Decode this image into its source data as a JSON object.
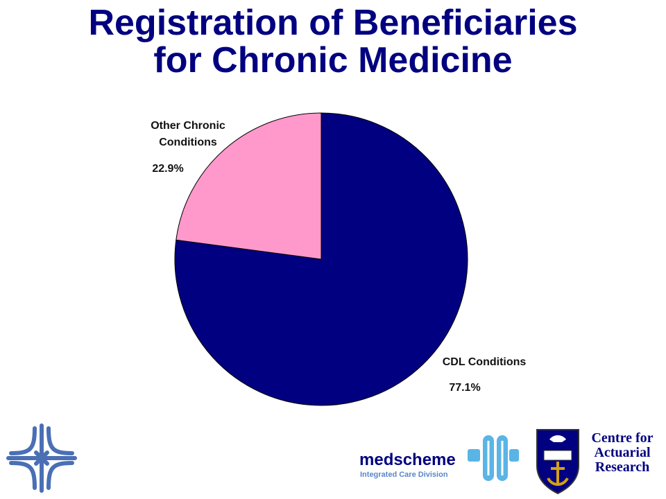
{
  "title": {
    "line1": "Registration of Beneficiaries",
    "line2": "for Chronic Medicine"
  },
  "chart_data": {
    "type": "pie",
    "slices": [
      {
        "label_lines": [
          "CDL Conditions"
        ],
        "value": 77.1,
        "value_label": "77.1%",
        "color": "#000080"
      },
      {
        "label_lines": [
          "Other Chronic",
          "Conditions"
        ],
        "value": 22.9,
        "value_label": "22.9%",
        "color": "#ff99cc"
      }
    ]
  },
  "footer": {
    "medscheme_word": "medscheme",
    "medscheme_sub": "Integrated Care Division",
    "car_lines": [
      "Centre for",
      "Actuarial",
      "Research"
    ],
    "colors": {
      "navy": "#000080",
      "light_blue": "#5ab4e6"
    }
  }
}
